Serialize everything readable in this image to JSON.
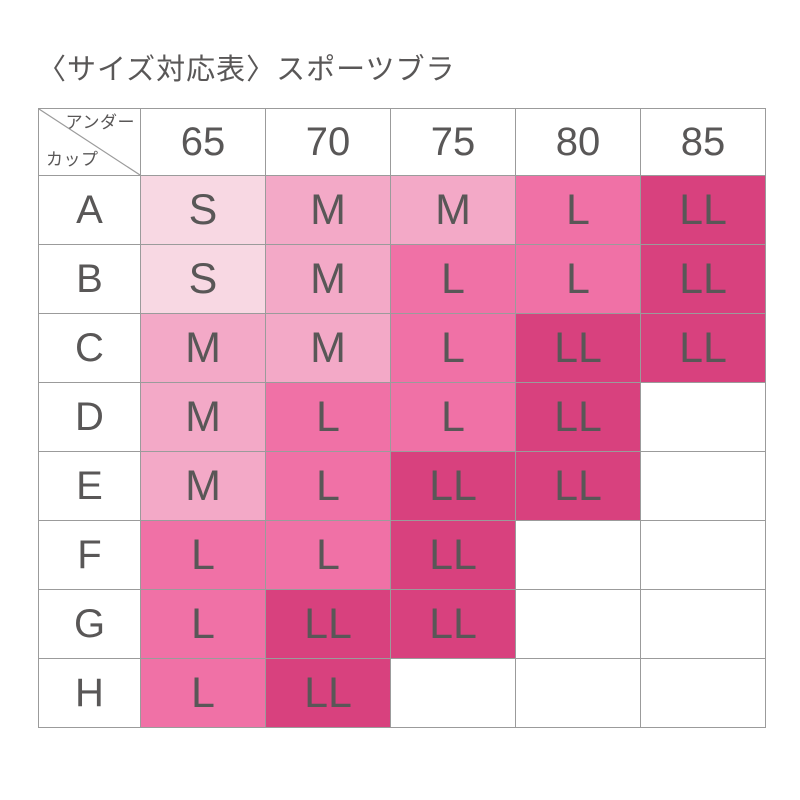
{
  "title": "〈サイズ対応表〉スポーツブラ",
  "chart_data": {
    "type": "table",
    "title": "〈サイズ対応表〉スポーツブラ",
    "corner": {
      "column_axis_label": "アンダー",
      "row_axis_label": "カップ"
    },
    "columns": [
      "65",
      "70",
      "75",
      "80",
      "85"
    ],
    "rows": [
      {
        "cup": "A",
        "sizes": [
          "S",
          "M",
          "M",
          "L",
          "LL"
        ]
      },
      {
        "cup": "B",
        "sizes": [
          "S",
          "M",
          "L",
          "L",
          "LL"
        ]
      },
      {
        "cup": "C",
        "sizes": [
          "M",
          "M",
          "L",
          "LL",
          "LL"
        ]
      },
      {
        "cup": "D",
        "sizes": [
          "M",
          "L",
          "L",
          "LL",
          ""
        ]
      },
      {
        "cup": "E",
        "sizes": [
          "M",
          "L",
          "LL",
          "LL",
          ""
        ]
      },
      {
        "cup": "F",
        "sizes": [
          "L",
          "L",
          "LL",
          "",
          ""
        ]
      },
      {
        "cup": "G",
        "sizes": [
          "L",
          "LL",
          "LL",
          "",
          ""
        ]
      },
      {
        "cup": "H",
        "sizes": [
          "L",
          "LL",
          "",
          "",
          ""
        ]
      }
    ],
    "cell_colors": {
      "S": "#f8d8e3",
      "M": "#f3a9c7",
      "L": "#f071a6",
      "LL": "#d8417e",
      "empty": "#ffffff"
    },
    "text_color": "#595757",
    "grid_color": "#9b9b9b"
  }
}
